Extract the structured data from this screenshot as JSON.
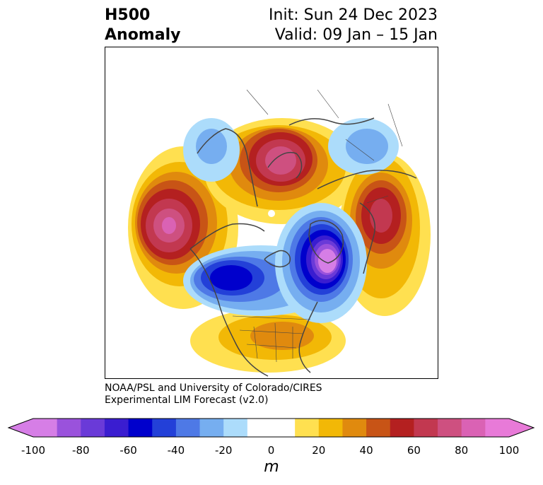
{
  "title": {
    "left_line1": "H500",
    "left_line2": "Anomaly",
    "right_line1": "Init: Sun 24 Dec 2023",
    "right_line2": "Valid: 09 Jan – 15 Jan"
  },
  "credit": {
    "line1": "NOAA/PSL and University of Colorado/CIRES",
    "line2": "Experimental LIM Forecast (v2.0)"
  },
  "colorbar": {
    "unit": "m",
    "ticks": [
      "-100",
      "-80",
      "-60",
      "-40",
      "-20",
      "0",
      "20",
      "40",
      "60",
      "80",
      "100"
    ],
    "colors": [
      "#d67ee6",
      "#9a52dc",
      "#6a3ad8",
      "#3a1dd0",
      "#0000cc",
      "#2340d8",
      "#4e79e6",
      "#76aef0",
      "#acdcfb",
      "#ffffff",
      "#ffffff",
      "#ffe050",
      "#f2b806",
      "#e08a0e",
      "#c85416",
      "#b42020",
      "#c23850",
      "#ce5080",
      "#da62b4",
      "#e87ad8"
    ],
    "extend_low_color": "#d67ee6",
    "extend_high_color": "#e87ad8"
  }
}
